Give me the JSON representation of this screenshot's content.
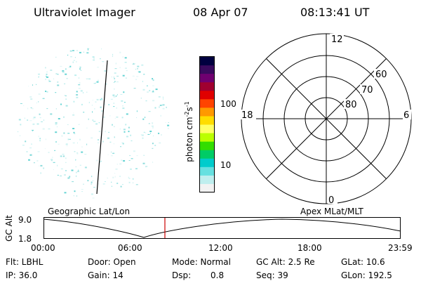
{
  "header": {
    "title": "Ultraviolet Imager",
    "date": "08 Apr 07",
    "time": "08:13:41 UT"
  },
  "colorbar": {
    "label_main": "photon cm",
    "label_exp1": "-2",
    "label_s": "s",
    "label_exp2": "-1",
    "ticks": [
      "100",
      "10"
    ],
    "colors": [
      "#000040",
      "#3a0a5e",
      "#700070",
      "#a00030",
      "#e00000",
      "#ff4400",
      "#ff9900",
      "#ffdd00",
      "#ffff66",
      "#bbff00",
      "#33dd00",
      "#00cc66",
      "#00cccc",
      "#66e0e0",
      "#bfeeee",
      "#f2f2f2"
    ]
  },
  "polar_plot": {
    "mlt_labels": {
      "top": "12",
      "bottom": "0",
      "left": "18",
      "right": "6"
    },
    "lat_labels": [
      "60",
      "70",
      "80"
    ]
  },
  "timeline": {
    "yaxis_label": "GC Alt",
    "ymax": "9.0",
    "ymin": "1.8",
    "left_title": "Geographic Lat/Lon",
    "right_title": "Apex MLat/MLT",
    "xticks": [
      "00:00",
      "06:00",
      "12:00",
      "18:00",
      "23:59"
    ],
    "current_time_color": "#cc0000"
  },
  "info": {
    "flt": "Flt: LBHL",
    "ip": "IP: 36.0",
    "door": "Door: Open",
    "gain": "Gain: 14",
    "mode": "Mode: Normal",
    "dsp_label": "Dsp:",
    "dsp_value": "0.8",
    "gcalt": "GC Alt: 2.5 Re",
    "seq": "Seq: 39",
    "glat": "GLat: 10.6",
    "glon": "GLon: 192.5"
  }
}
